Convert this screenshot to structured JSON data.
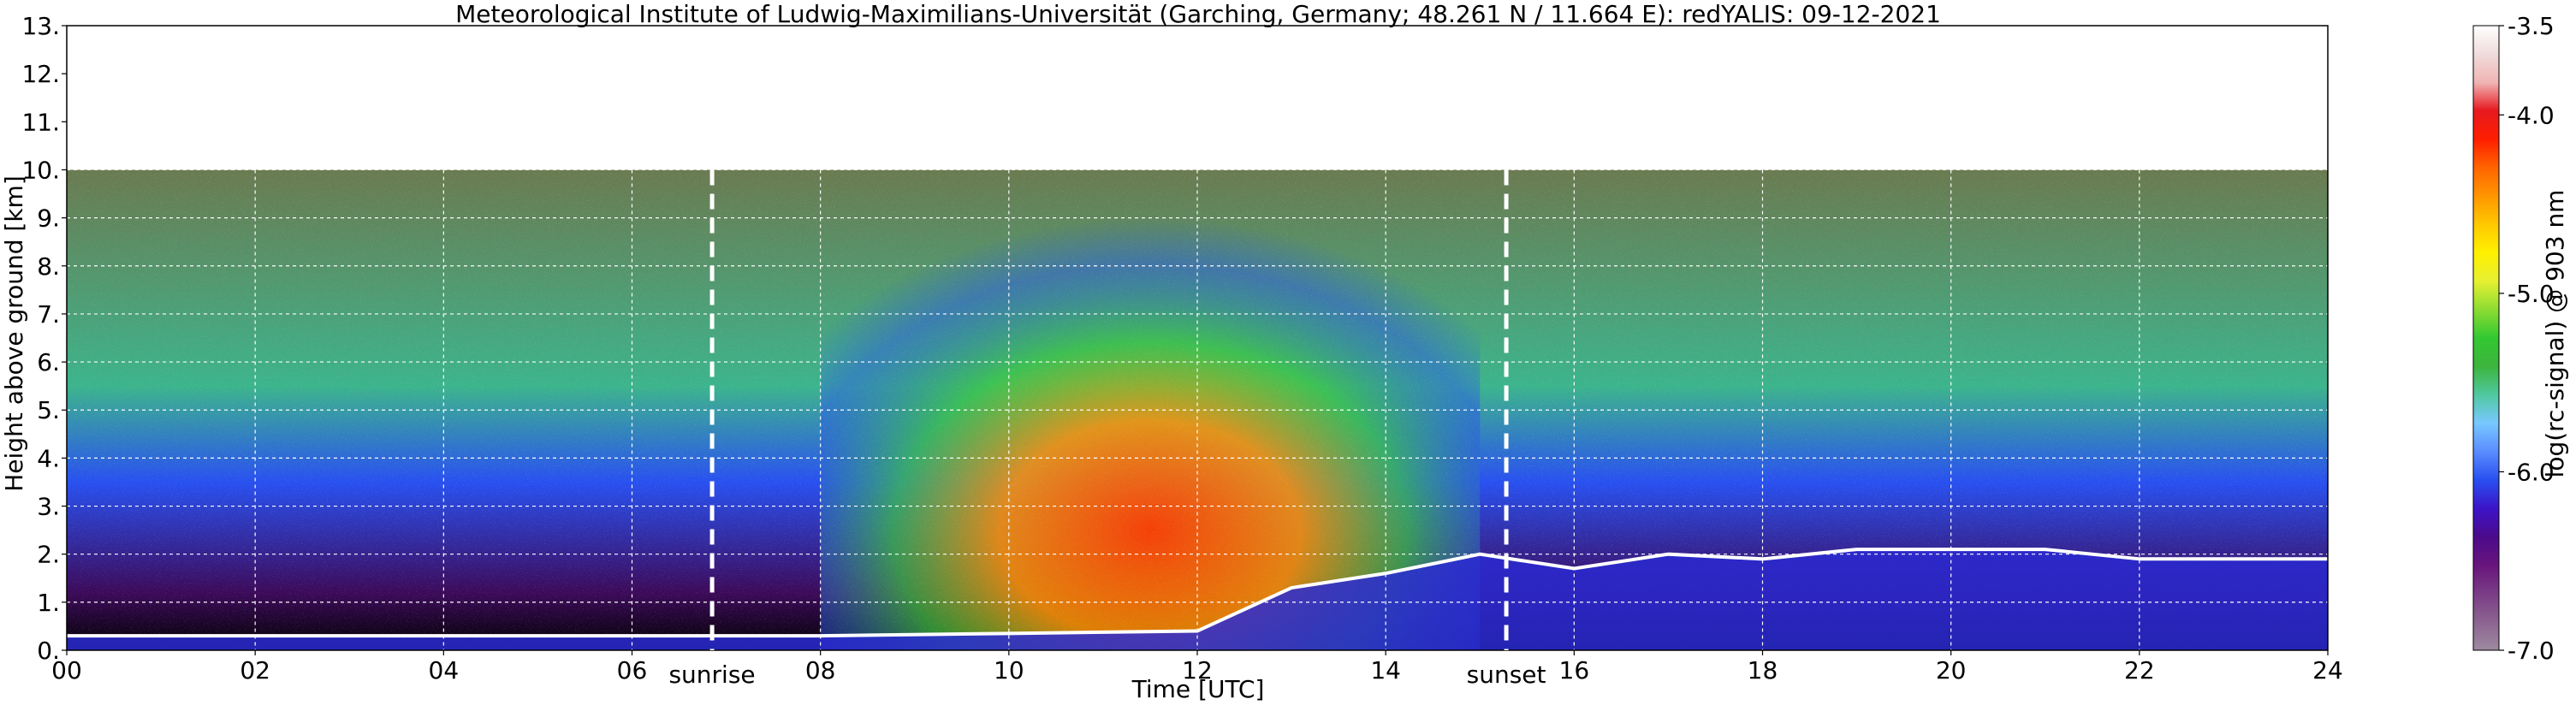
{
  "chart_data": {
    "type": "heatmap",
    "title": "Meteorological Institute of Ludwig-Maximilians-Universität (Garching, Germany; 48.261 N / 11.664 E):    redYALIS: 09-12-2021",
    "xlabel": "Time [UTC]",
    "ylabel": "Height above ground [km]",
    "xlim": [
      0,
      24
    ],
    "ylim": [
      0,
      13
    ],
    "x_ticks": [
      0,
      2,
      4,
      6,
      8,
      10,
      12,
      14,
      16,
      18,
      20,
      22,
      24
    ],
    "x_tick_labels": [
      "00",
      "02",
      "04",
      "06",
      "08",
      "10",
      "12",
      "14",
      "16",
      "18",
      "20",
      "22",
      "24"
    ],
    "y_ticks": [
      0,
      1,
      2,
      3,
      4,
      5,
      6,
      7,
      8,
      9,
      10,
      11,
      12,
      13
    ],
    "y_tick_labels": [
      "0.",
      "1.",
      "2.",
      "3.",
      "4.",
      "5.",
      "6.",
      "7.",
      "8.",
      "9.",
      "10.",
      "11.",
      "12.",
      "13."
    ],
    "grid": true,
    "data_max_height_km": 10,
    "colorbar": {
      "label": "log(rc-signal) @ 903 nm",
      "range": [
        -7.0,
        -3.5
      ],
      "ticks": [
        -7.0,
        -6.0,
        -5.0,
        -4.0,
        -3.5
      ],
      "tick_labels": [
        "-7.0",
        "-6.0",
        "-5.0",
        "-4.0",
        "-3.5"
      ],
      "colors": [
        "#9e8aa0",
        "#8c6490",
        "#7a3c86",
        "#68157c",
        "#4b0a8c",
        "#3c14c8",
        "#2850f0",
        "#5a8cff",
        "#78c8ff",
        "#50c8a0",
        "#3cb43c",
        "#32c832",
        "#8cdc32",
        "#e6f032",
        "#fff000",
        "#ffc800",
        "#ff9600",
        "#ff6400",
        "#ff1e00",
        "#e6191e",
        "#f0b4b4",
        "#f0dcdc",
        "#ffffff"
      ]
    },
    "annotations": [
      {
        "text": "sunrise",
        "x": 6.85
      },
      {
        "text": "sunset",
        "x": 15.28
      }
    ],
    "boundary_layer_top_km": {
      "x": [
        0,
        2,
        4,
        6,
        8,
        10,
        12,
        13,
        14,
        15,
        16,
        17,
        18,
        19,
        20,
        21,
        22,
        23,
        24
      ],
      "y": [
        0.3,
        0.3,
        0.3,
        0.3,
        0.3,
        0.35,
        0.4,
        1.3,
        1.6,
        2.0,
        1.7,
        2.0,
        1.9,
        2.1,
        2.1,
        2.1,
        1.9,
        1.9,
        1.9
      ]
    }
  }
}
